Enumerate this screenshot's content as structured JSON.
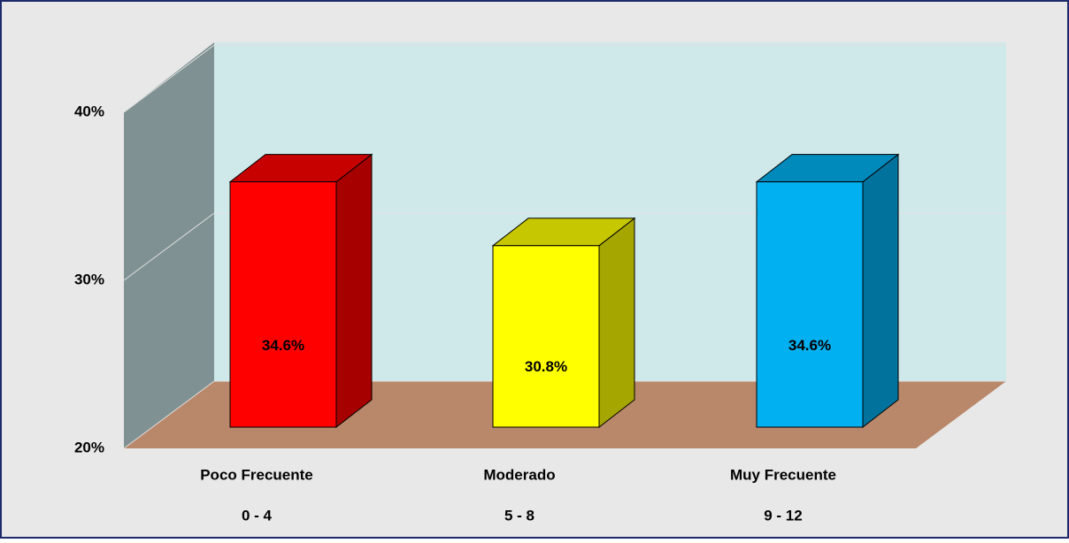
{
  "chart_data": {
    "type": "bar3d",
    "categories": [
      "Poco Frecuente",
      "Moderado",
      "Muy Frecuente"
    ],
    "ranges": [
      "0 - 4",
      "5 - 8",
      "9 - 12"
    ],
    "values": [
      34.6,
      30.8,
      34.6
    ],
    "value_labels": [
      "34.6%",
      "30.8%",
      "34.6%"
    ],
    "colors": [
      "#ff0000",
      "#ffff00",
      "#00b0f0"
    ],
    "ylim": [
      20,
      40
    ],
    "yticks": [
      {
        "value": 20,
        "label": "20%"
      },
      {
        "value": 30,
        "label": "30%"
      },
      {
        "value": 40,
        "label": "40%"
      }
    ],
    "grid": true
  }
}
